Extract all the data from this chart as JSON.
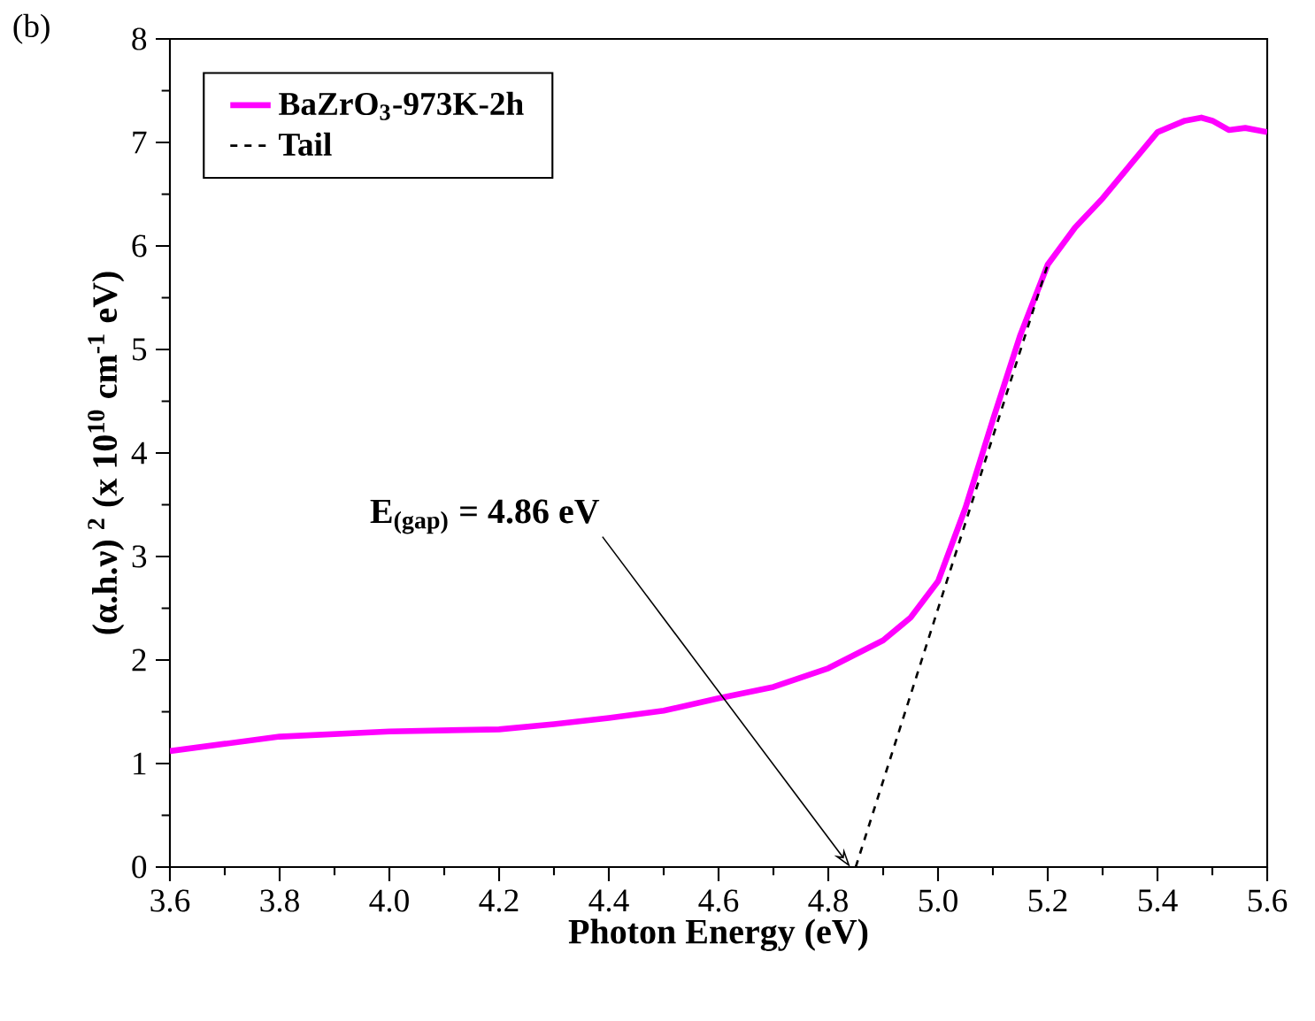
{
  "chart_data": {
    "type": "line",
    "xlabel": "Photon Energy (eV)",
    "ylabel": "(α.h.ν) $^{2}$ (x 10$^{10}$ cm$^{-1}$ eV)",
    "xlim": [
      3.6,
      5.6
    ],
    "ylim": [
      0,
      8
    ],
    "xticks": [
      {
        "value": 3.6,
        "label": "3.6"
      },
      {
        "value": 3.8,
        "label": "3.8"
      },
      {
        "value": 4.0,
        "label": "4.0"
      },
      {
        "value": 4.2,
        "label": "4.2"
      },
      {
        "value": 4.4,
        "label": "4.4"
      },
      {
        "value": 4.6,
        "label": "4.6"
      },
      {
        "value": 4.8,
        "label": "4.8"
      },
      {
        "value": 5.0,
        "label": "5.0"
      },
      {
        "value": 5.2,
        "label": "5.2"
      },
      {
        "value": 5.4,
        "label": "5.4"
      },
      {
        "value": 5.6,
        "label": "5.6"
      }
    ],
    "yticks": [
      0,
      1,
      2,
      3,
      4,
      5,
      6,
      7,
      8
    ],
    "legend": "top left",
    "series": [
      {
        "name": "BaZrO$_{3}$-973K-2h",
        "color": "#ff00ff",
        "line_style": "solid",
        "x": [
          3.6,
          3.8,
          4.0,
          4.2,
          4.3,
          4.4,
          4.5,
          4.6,
          4.7,
          4.8,
          4.9,
          4.95,
          5.0,
          5.05,
          5.1,
          5.15,
          5.2,
          5.25,
          5.3,
          5.35,
          5.4,
          5.45,
          5.48,
          5.5,
          5.53,
          5.56,
          5.6
        ],
        "values": [
          1.12,
          1.26,
          1.31,
          1.33,
          1.38,
          1.44,
          1.51,
          1.63,
          1.74,
          1.92,
          2.19,
          2.41,
          2.76,
          3.47,
          4.32,
          5.14,
          5.82,
          6.18,
          6.46,
          6.78,
          7.1,
          7.21,
          7.24,
          7.21,
          7.12,
          7.14,
          7.1
        ]
      },
      {
        "name": "Tail",
        "color": "#000000",
        "line_style": "dashed",
        "x": [
          4.85,
          5.2
        ],
        "values": [
          0,
          5.82
        ]
      }
    ],
    "annotations": [
      "(b)",
      {
        "text": "E$_{(gap)}$ = 4.86 eV",
        "x": 4.84,
        "y": 0
      }
    ]
  }
}
